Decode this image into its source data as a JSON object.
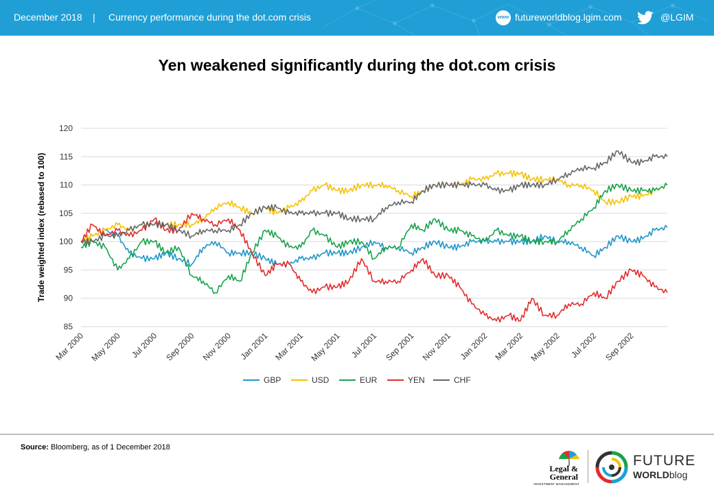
{
  "header": {
    "date": "December 2018",
    "separator": "|",
    "subtitle": "Currency performance during the dot.com crisis",
    "www_badge": "www",
    "url": "futureworldblog.lgim.com",
    "twitter_handle": "@LGIM",
    "bg_color": "#1f9fd6"
  },
  "footer": {
    "source_label": "Source:",
    "source_text": "Bloomberg, as of 1 December 2018",
    "lg_logo_name_1": "Legal &",
    "lg_logo_name_2": "General",
    "lg_logo_sub": "INVESTMENT MANAGEMENT",
    "fw_title": "FUTURE",
    "fw_sub_bold": "WORLD",
    "fw_sub_rest": "blog"
  },
  "chart_data": {
    "type": "line",
    "title": "Yen weakened significantly during the dot.com crisis",
    "ylabel": "Trade weighted index (rebased to 100)",
    "xlabel": "",
    "ylim": [
      85,
      120
    ],
    "yticks": [
      85,
      90,
      95,
      100,
      105,
      110,
      115,
      120
    ],
    "xlim": [
      "2000-03-01",
      "2002-10-31"
    ],
    "xticks": [
      "2000-03-01",
      "2000-05-01",
      "2000-07-01",
      "2000-09-01",
      "2000-11-01",
      "2001-01-01",
      "2001-03-01",
      "2001-05-01",
      "2001-07-01",
      "2001-09-01",
      "2001-11-01",
      "2002-01-01",
      "2002-03-01",
      "2002-05-01",
      "2002-07-01",
      "2002-09-01"
    ],
    "xtick_labels": [
      "Mar 2000",
      "May 2000",
      "Jul 2000",
      "Sep 2000",
      "Nov 2000",
      "Jan 2001",
      "Mar 2001",
      "May 2001",
      "Jul 2001",
      "Sep 2001",
      "Nov 2001",
      "Jan 2002",
      "Mar 2002",
      "May 2002",
      "Jul 2002",
      "Sep 2002"
    ],
    "grid": "horizontal",
    "legend_position": "bottom",
    "series": [
      {
        "name": "GBP",
        "color": "#1e96c8",
        "x": [
          "2000-03-01",
          "2000-03-20",
          "2000-04-10",
          "2000-05-01",
          "2000-05-20",
          "2000-06-10",
          "2000-07-01",
          "2000-07-20",
          "2000-08-10",
          "2000-09-01",
          "2000-09-20",
          "2000-10-10",
          "2000-11-01",
          "2000-11-20",
          "2000-12-10",
          "2001-01-01",
          "2001-01-20",
          "2001-02-10",
          "2001-03-01",
          "2001-03-20",
          "2001-04-10",
          "2001-05-01",
          "2001-05-20",
          "2001-06-10",
          "2001-07-01",
          "2001-07-20",
          "2001-08-10",
          "2001-09-01",
          "2001-09-20",
          "2001-10-10",
          "2001-11-01",
          "2001-11-20",
          "2001-12-10",
          "2002-01-01",
          "2002-01-20",
          "2002-02-10",
          "2002-03-01",
          "2002-03-20",
          "2002-04-10",
          "2002-05-01",
          "2002-05-20",
          "2002-06-10",
          "2002-07-01",
          "2002-07-20",
          "2002-08-10",
          "2002-09-01",
          "2002-09-20",
          "2002-10-10",
          "2002-10-31"
        ],
        "values": [
          100,
          101,
          102,
          101,
          98,
          97,
          97,
          98,
          97,
          96,
          99,
          100,
          98,
          98,
          98,
          97,
          96,
          96,
          97,
          97,
          98,
          98,
          98,
          99,
          100,
          99,
          99,
          98,
          99,
          100,
          99,
          99,
          100,
          100,
          100,
          100,
          100,
          100,
          101,
          100,
          100,
          99,
          97.5,
          99,
          101,
          100,
          100.5,
          102,
          102.5
        ]
      },
      {
        "name": "USD",
        "color": "#f5c000",
        "x": [
          "2000-03-01",
          "2000-03-20",
          "2000-04-10",
          "2000-05-01",
          "2000-05-20",
          "2000-06-10",
          "2000-07-01",
          "2000-07-20",
          "2000-08-10",
          "2000-09-01",
          "2000-09-20",
          "2000-10-10",
          "2000-11-01",
          "2000-11-20",
          "2000-12-10",
          "2001-01-01",
          "2001-01-20",
          "2001-02-10",
          "2001-03-01",
          "2001-03-20",
          "2001-04-10",
          "2001-05-01",
          "2001-05-20",
          "2001-06-10",
          "2001-07-01",
          "2001-07-20",
          "2001-08-10",
          "2001-09-01",
          "2001-09-20",
          "2001-10-10",
          "2001-11-01",
          "2001-11-20",
          "2001-12-10",
          "2002-01-01",
          "2002-01-20",
          "2002-02-10",
          "2002-03-01",
          "2002-03-20",
          "2002-04-10",
          "2002-05-01",
          "2002-05-20",
          "2002-06-10",
          "2002-07-01",
          "2002-07-20",
          "2002-08-10",
          "2002-09-01",
          "2002-09-20",
          "2002-10-10",
          "2002-10-31"
        ],
        "values": [
          100,
          101,
          102,
          103,
          102,
          103,
          103,
          103,
          103,
          103,
          104,
          106,
          107,
          106,
          105,
          106,
          105,
          106,
          107,
          109,
          110,
          109,
          109,
          110,
          110,
          110,
          109,
          108,
          109,
          110,
          110,
          110,
          111,
          111,
          112,
          112,
          112,
          111,
          111,
          111,
          110,
          110,
          109,
          107,
          107,
          108,
          108,
          109,
          110
        ]
      },
      {
        "name": "EUR",
        "color": "#17a34a",
        "x": [
          "2000-03-01",
          "2000-03-20",
          "2000-04-10",
          "2000-05-01",
          "2000-05-20",
          "2000-06-10",
          "2000-07-01",
          "2000-07-20",
          "2000-08-10",
          "2000-09-01",
          "2000-09-20",
          "2000-10-10",
          "2000-11-01",
          "2000-11-20",
          "2000-12-10",
          "2001-01-01",
          "2001-01-20",
          "2001-02-10",
          "2001-03-01",
          "2001-03-20",
          "2001-04-10",
          "2001-05-01",
          "2001-05-20",
          "2001-06-10",
          "2001-07-01",
          "2001-07-20",
          "2001-08-10",
          "2001-09-01",
          "2001-09-20",
          "2001-10-10",
          "2001-11-01",
          "2001-11-20",
          "2001-12-10",
          "2002-01-01",
          "2002-01-20",
          "2002-02-10",
          "2002-03-01",
          "2002-03-20",
          "2002-04-10",
          "2002-05-01",
          "2002-05-20",
          "2002-06-10",
          "2002-07-01",
          "2002-07-20",
          "2002-08-10",
          "2002-09-01",
          "2002-09-20",
          "2002-10-10",
          "2002-10-31"
        ],
        "values": [
          99,
          100,
          99,
          95,
          97,
          100,
          100,
          98,
          99,
          94,
          93,
          91,
          94,
          93,
          98,
          102,
          101,
          99,
          99,
          102,
          101,
          99,
          100,
          100,
          97,
          99,
          99,
          103,
          102,
          104,
          102,
          102,
          101,
          100,
          102,
          101,
          101,
          100,
          100,
          100,
          102,
          104,
          106,
          109,
          110,
          109,
          109,
          109,
          110
        ]
      },
      {
        "name": "YEN",
        "color": "#e32b2b",
        "x": [
          "2000-03-01",
          "2000-03-20",
          "2000-04-10",
          "2000-05-01",
          "2000-05-20",
          "2000-06-10",
          "2000-07-01",
          "2000-07-20",
          "2000-08-10",
          "2000-09-01",
          "2000-09-20",
          "2000-10-10",
          "2000-11-01",
          "2000-11-20",
          "2000-12-10",
          "2001-01-01",
          "2001-01-20",
          "2001-02-10",
          "2001-03-01",
          "2001-03-20",
          "2001-04-10",
          "2001-05-01",
          "2001-05-20",
          "2001-06-10",
          "2001-07-01",
          "2001-07-20",
          "2001-08-10",
          "2001-09-01",
          "2001-09-20",
          "2001-10-10",
          "2001-11-01",
          "2001-11-20",
          "2001-12-10",
          "2002-01-01",
          "2002-01-20",
          "2002-02-10",
          "2002-03-01",
          "2002-03-20",
          "2002-04-10",
          "2002-05-01",
          "2002-05-20",
          "2002-06-10",
          "2002-07-01",
          "2002-07-20",
          "2002-08-10",
          "2002-09-01",
          "2002-09-20",
          "2002-10-10",
          "2002-10-31"
        ],
        "values": [
          100,
          103,
          101,
          102,
          101,
          102,
          104,
          102,
          102,
          105,
          104,
          103,
          104,
          102,
          98,
          94,
          96,
          96,
          93,
          91,
          92,
          92,
          93,
          97,
          93,
          93,
          93,
          95,
          97,
          94,
          94,
          92,
          89,
          87,
          86,
          87,
          86,
          90,
          87,
          87,
          89,
          89,
          91,
          90,
          93,
          95,
          94,
          92,
          91
        ]
      },
      {
        "name": "CHF",
        "color": "#666666",
        "x": [
          "2000-03-01",
          "2000-03-20",
          "2000-04-10",
          "2000-05-01",
          "2000-05-20",
          "2000-06-10",
          "2000-07-01",
          "2000-07-20",
          "2000-08-10",
          "2000-09-01",
          "2000-09-20",
          "2000-10-10",
          "2000-11-01",
          "2000-11-20",
          "2000-12-10",
          "2001-01-01",
          "2001-01-20",
          "2001-02-10",
          "2001-03-01",
          "2001-03-20",
          "2001-04-10",
          "2001-05-01",
          "2001-05-20",
          "2001-06-10",
          "2001-07-01",
          "2001-07-20",
          "2001-08-10",
          "2001-09-01",
          "2001-09-20",
          "2001-10-10",
          "2001-11-01",
          "2001-11-20",
          "2001-12-10",
          "2002-01-01",
          "2002-01-20",
          "2002-02-10",
          "2002-03-01",
          "2002-03-20",
          "2002-04-10",
          "2002-05-01",
          "2002-05-20",
          "2002-06-10",
          "2002-07-01",
          "2002-07-20",
          "2002-08-10",
          "2002-09-01",
          "2002-09-20",
          "2002-10-10",
          "2002-10-31"
        ],
        "values": [
          100,
          100,
          101,
          101,
          102,
          103,
          103,
          103,
          102,
          101,
          102,
          102,
          102,
          103,
          105,
          106,
          106,
          105,
          105,
          105,
          105,
          105,
          104,
          104,
          104,
          106,
          107,
          107,
          109,
          110,
          110,
          110,
          110,
          110,
          109,
          109,
          110,
          110,
          110,
          111,
          112,
          113,
          113,
          114,
          116,
          114,
          114,
          115,
          115
        ]
      }
    ]
  }
}
